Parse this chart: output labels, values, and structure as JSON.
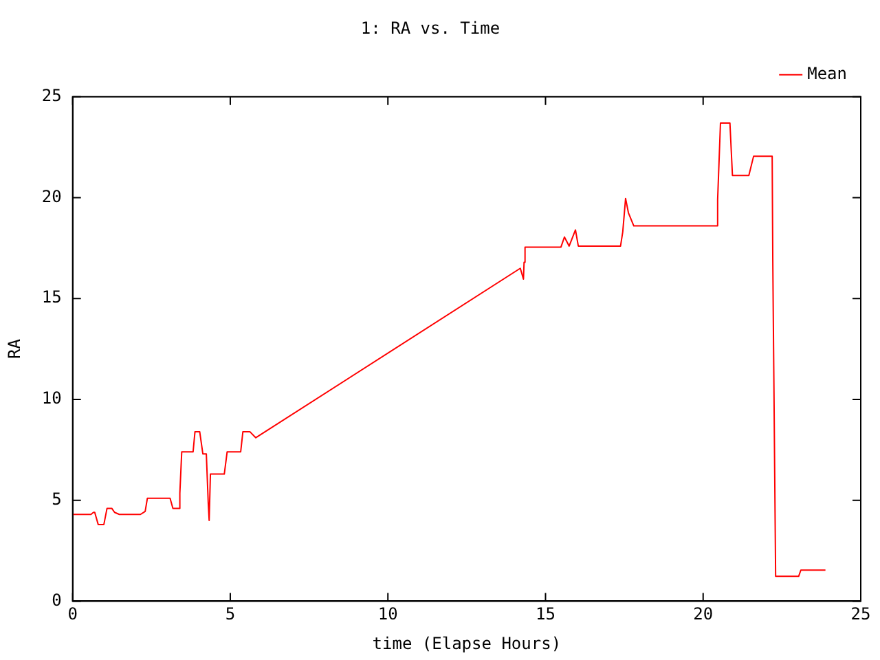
{
  "chart_data": {
    "type": "line",
    "title": "1: RA vs. Time",
    "xlabel": "time (Elapse Hours)",
    "ylabel": "RA",
    "xlim": [
      0,
      25
    ],
    "xticks": [
      0,
      5,
      10,
      15,
      20,
      25
    ],
    "ylim": [
      0,
      25
    ],
    "yticks": [
      0,
      5,
      10,
      15,
      20,
      25
    ],
    "grid": false,
    "legend": "top right",
    "marker": "none",
    "line_style": "solid",
    "series": [
      {
        "name": "Mean",
        "color": "#ff0000",
        "x": [
          0,
          0.58,
          0.66,
          0.7,
          0.81,
          0.99,
          1.09,
          1.24,
          1.33,
          1.48,
          2.15,
          2.3,
          2.37,
          3.09,
          3.18,
          3.38,
          3.4,
          3.46,
          3.82,
          3.88,
          4.03,
          4.13,
          4.24,
          4.3,
          4.33,
          4.37,
          4.81,
          4.9,
          5.33,
          5.4,
          5.62,
          5.81,
          14.2,
          14.3,
          14.32,
          14.35,
          15.49,
          15.6,
          15.75,
          15.95,
          16.04,
          17.38,
          17.45,
          17.54,
          17.63,
          17.8,
          20.44,
          20.46,
          20.55,
          20.85,
          20.93,
          21.45,
          21.6,
          22.19,
          22.21,
          22.27,
          22.3,
          23.03,
          23.1,
          23.88
        ],
        "values": [
          4.3,
          4.3,
          4.4,
          4.4,
          3.8,
          3.8,
          4.6,
          4.6,
          4.4,
          4.3,
          4.3,
          4.45,
          5.1,
          5.1,
          4.6,
          4.6,
          5.35,
          7.4,
          7.4,
          8.4,
          8.4,
          7.3,
          7.3,
          4.9,
          4,
          6.3,
          6.3,
          7.4,
          7.4,
          8.4,
          8.4,
          8.1,
          16.5,
          15.96,
          16.8,
          17.55,
          17.55,
          18.05,
          17.6,
          18.4,
          17.6,
          17.6,
          18.3,
          19.96,
          19.25,
          18.6,
          18.6,
          19.9,
          23.7,
          23.7,
          21.1,
          21.1,
          22.05,
          22.05,
          16.85,
          6.4,
          1.23,
          1.23,
          1.54,
          1.54
        ]
      }
    ]
  }
}
